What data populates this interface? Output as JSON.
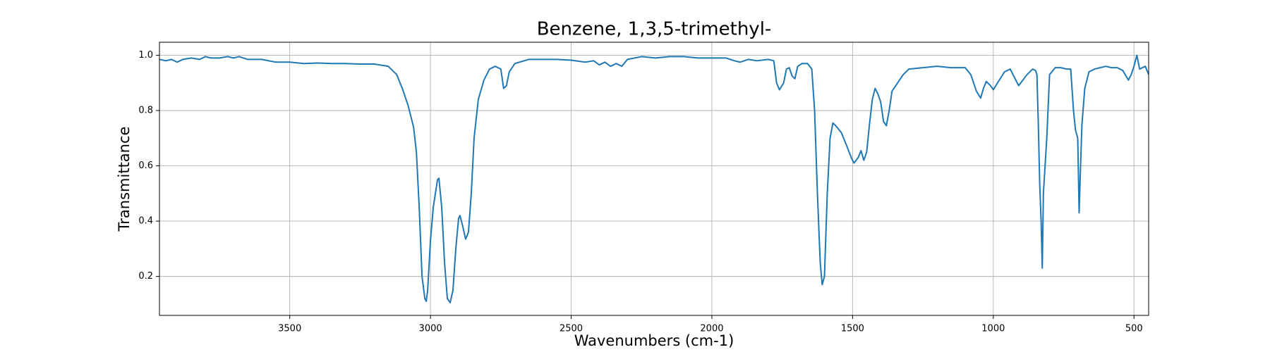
{
  "chart_data": {
    "type": "line",
    "title": "Benzene, 1,3,5-trimethyl-",
    "x_label": "Wavenumbers (cm-1)",
    "y_label": "Transmittance",
    "color": "#1f77b4",
    "grid": true,
    "xlim": [
      3963,
      448
    ],
    "ylim": [
      0.059,
      1.047
    ],
    "xticks": [
      3500,
      3000,
      2500,
      2000,
      1500,
      1000,
      500
    ],
    "yticks": [
      0.2,
      0.4,
      0.6,
      0.8,
      {
        "value": 1,
        "label": "1.0"
      }
    ],
    "x": [
      3963,
      3940,
      3920,
      3900,
      3880,
      3850,
      3820,
      3800,
      3780,
      3750,
      3720,
      3700,
      3680,
      3650,
      3600,
      3550,
      3500,
      3450,
      3400,
      3350,
      3300,
      3250,
      3200,
      3150,
      3120,
      3100,
      3080,
      3060,
      3050,
      3040,
      3030,
      3020,
      3015,
      3010,
      3000,
      2990,
      2975,
      2970,
      2960,
      2950,
      2940,
      2930,
      2920,
      2910,
      2900,
      2895,
      2885,
      2875,
      2865,
      2855,
      2845,
      2830,
      2810,
      2790,
      2770,
      2750,
      2740,
      2730,
      2720,
      2700,
      2650,
      2600,
      2550,
      2500,
      2450,
      2420,
      2400,
      2380,
      2360,
      2340,
      2320,
      2300,
      2250,
      2200,
      2150,
      2100,
      2050,
      2000,
      1950,
      1920,
      1900,
      1870,
      1840,
      1800,
      1780,
      1770,
      1760,
      1745,
      1735,
      1725,
      1715,
      1705,
      1695,
      1680,
      1660,
      1645,
      1635,
      1625,
      1615,
      1608,
      1600,
      1590,
      1580,
      1570,
      1560,
      1540,
      1520,
      1505,
      1495,
      1480,
      1470,
      1460,
      1450,
      1440,
      1430,
      1420,
      1410,
      1400,
      1390,
      1380,
      1370,
      1360,
      1340,
      1320,
      1300,
      1250,
      1200,
      1150,
      1100,
      1080,
      1060,
      1045,
      1035,
      1025,
      1010,
      1000,
      985,
      960,
      940,
      925,
      910,
      895,
      880,
      860,
      850,
      845,
      840,
      835,
      830,
      826,
      822,
      810,
      800,
      780,
      760,
      740,
      725,
      715,
      708,
      700,
      695,
      690,
      685,
      675,
      660,
      640,
      620,
      600,
      580,
      560,
      540,
      520,
      510,
      500,
      490,
      480,
      470,
      460,
      448
    ],
    "values": [
      0.985,
      0.98,
      0.985,
      0.975,
      0.985,
      0.99,
      0.985,
      0.995,
      0.99,
      0.99,
      0.995,
      0.99,
      0.995,
      0.985,
      0.985,
      0.975,
      0.975,
      0.97,
      0.972,
      0.97,
      0.97,
      0.968,
      0.968,
      0.96,
      0.93,
      0.88,
      0.82,
      0.74,
      0.65,
      0.45,
      0.2,
      0.12,
      0.11,
      0.15,
      0.33,
      0.45,
      0.55,
      0.555,
      0.45,
      0.25,
      0.12,
      0.105,
      0.15,
      0.3,
      0.41,
      0.42,
      0.38,
      0.335,
      0.36,
      0.5,
      0.7,
      0.84,
      0.91,
      0.95,
      0.96,
      0.95,
      0.88,
      0.89,
      0.94,
      0.97,
      0.985,
      0.985,
      0.985,
      0.982,
      0.975,
      0.98,
      0.965,
      0.975,
      0.96,
      0.97,
      0.96,
      0.985,
      0.995,
      0.99,
      0.995,
      0.995,
      0.99,
      0.99,
      0.99,
      0.98,
      0.975,
      0.985,
      0.98,
      0.985,
      0.98,
      0.9,
      0.875,
      0.9,
      0.95,
      0.955,
      0.925,
      0.915,
      0.96,
      0.97,
      0.97,
      0.95,
      0.8,
      0.5,
      0.25,
      0.17,
      0.2,
      0.5,
      0.7,
      0.755,
      0.745,
      0.72,
      0.67,
      0.63,
      0.61,
      0.63,
      0.655,
      0.62,
      0.65,
      0.75,
      0.84,
      0.88,
      0.86,
      0.83,
      0.76,
      0.745,
      0.8,
      0.87,
      0.9,
      0.93,
      0.95,
      0.955,
      0.96,
      0.955,
      0.955,
      0.93,
      0.87,
      0.845,
      0.88,
      0.905,
      0.89,
      0.875,
      0.9,
      0.94,
      0.95,
      0.92,
      0.89,
      0.91,
      0.93,
      0.95,
      0.945,
      0.93,
      0.75,
      0.53,
      0.4,
      0.23,
      0.5,
      0.7,
      0.93,
      0.955,
      0.955,
      0.95,
      0.95,
      0.8,
      0.73,
      0.7,
      0.43,
      0.6,
      0.75,
      0.88,
      0.94,
      0.95,
      0.955,
      0.96,
      0.955,
      0.955,
      0.945,
      0.91,
      0.93,
      0.96,
      1.0,
      0.95,
      0.955,
      0.96,
      0.93
    ]
  }
}
